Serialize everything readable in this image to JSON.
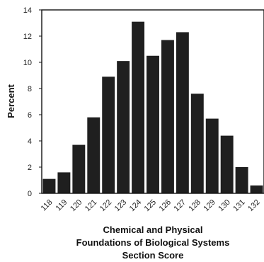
{
  "chart_data": {
    "type": "bar",
    "categories": [
      "118",
      "119",
      "120",
      "121",
      "122",
      "123",
      "124",
      "125",
      "126",
      "127",
      "128",
      "129",
      "130",
      "131",
      "132"
    ],
    "values": [
      1.1,
      1.6,
      3.7,
      5.8,
      8.9,
      10.1,
      13.1,
      10.5,
      11.7,
      12.3,
      7.6,
      5.7,
      4.4,
      2.0,
      0.6
    ],
    "title": "",
    "xlabel": [
      "Chemical and Physical",
      "Foundations of Biological Systems",
      "Section Score"
    ],
    "ylabel": "Percent",
    "ylim": [
      0,
      14
    ],
    "yticks": [
      "0",
      "2",
      "4",
      "6",
      "8",
      "10",
      "12",
      "14"
    ],
    "grid": false,
    "bar_color": "#1f1f1f"
  }
}
